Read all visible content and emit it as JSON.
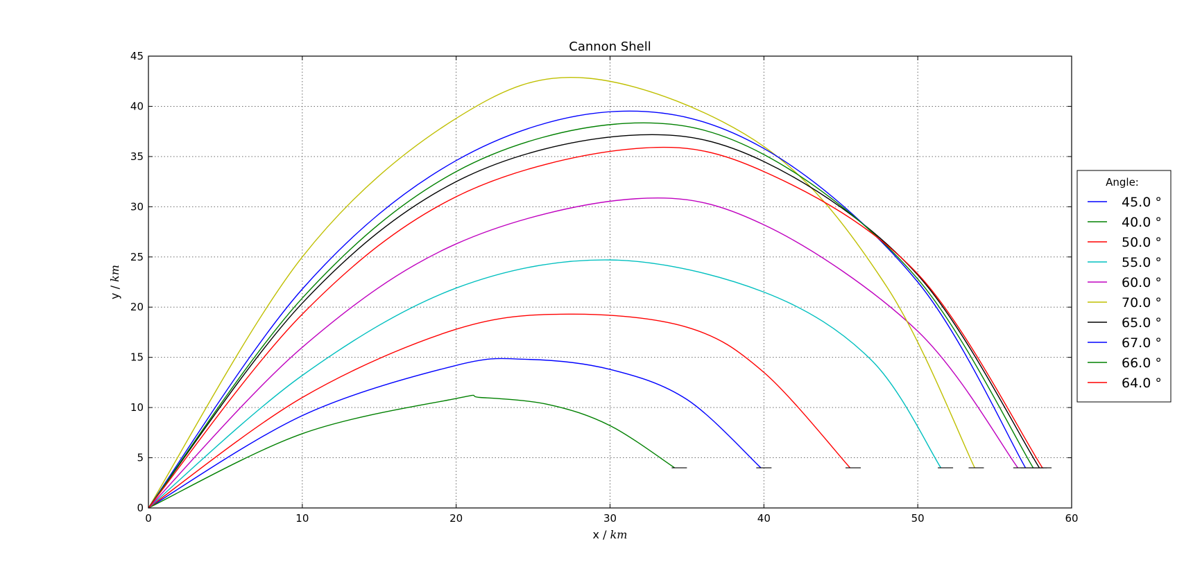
{
  "chart_data": {
    "type": "line",
    "title": "Cannon Shell",
    "xlabel": "x / ",
    "xlabel_unit": "km",
    "ylabel": "y / ",
    "ylabel_unit": "km",
    "xlim": [
      0,
      60
    ],
    "ylim": [
      0,
      45
    ],
    "xticks": [
      0,
      10,
      20,
      30,
      40,
      50,
      60
    ],
    "yticks": [
      0,
      5,
      10,
      15,
      20,
      25,
      30,
      35,
      40,
      45
    ],
    "grid": true,
    "legend": {
      "title": "Angle:",
      "placement": "outside-right"
    },
    "series": [
      {
        "name": "45.0 °",
        "color": "#0000ff",
        "x": [
          0,
          10,
          20,
          24.6,
          30,
          35,
          39.8
        ],
        "y": [
          0,
          9.2,
          14.2,
          14.8,
          13.8,
          10.8,
          4
        ]
      },
      {
        "name": "40.0 °",
        "color": "#008000",
        "x": [
          0,
          10,
          20,
          21.6,
          26,
          30,
          34.2
        ],
        "y": [
          0,
          7.4,
          10.9,
          11.0,
          10.3,
          8.2,
          4
        ]
      },
      {
        "name": "50.0 °",
        "color": "#ff0000",
        "x": [
          0,
          10,
          20,
          27.3,
          35,
          40,
          45.6
        ],
        "y": [
          0,
          11.0,
          17.8,
          19.3,
          18.0,
          13.5,
          4
        ]
      },
      {
        "name": "55.0 °",
        "color": "#00bfbf",
        "x": [
          0,
          10,
          20,
          30,
          40,
          47,
          51.5
        ],
        "y": [
          0,
          13.2,
          21.9,
          24.7,
          21.5,
          14.7,
          4
        ]
      },
      {
        "name": "60.0 °",
        "color": "#bf00bf",
        "x": [
          0,
          10,
          20,
          31.7,
          40,
          50,
          56.5
        ],
        "y": [
          0,
          16.0,
          26.3,
          30.8,
          28.2,
          17.6,
          4
        ]
      },
      {
        "name": "70.0 °",
        "color": "#bfbf00",
        "x": [
          0,
          10,
          20,
          28.6,
          40,
          48,
          53.7
        ],
        "y": [
          0,
          25.0,
          38.8,
          42.8,
          36.0,
          22.0,
          4
        ]
      },
      {
        "name": "65.0 °",
        "color": "#000000",
        "x": [
          0,
          10,
          20,
          31.2,
          40,
          50,
          57.9
        ],
        "y": [
          0,
          20.4,
          32.5,
          37.1,
          34.5,
          23.2,
          4
        ]
      },
      {
        "name": "67.0 °",
        "color": "#0000ff",
        "x": [
          0,
          10,
          20,
          30.5,
          40,
          50,
          57.0
        ],
        "y": [
          0,
          21.8,
          34.6,
          39.5,
          35.8,
          22.5,
          4
        ]
      },
      {
        "name": "66.0 °",
        "color": "#008000",
        "x": [
          0,
          10,
          20,
          31.0,
          40,
          50,
          57.5
        ],
        "y": [
          0,
          20.9,
          33.5,
          38.3,
          35.2,
          22.8,
          4
        ]
      },
      {
        "name": "64.0 °",
        "color": "#ff0000",
        "x": [
          0,
          10,
          20,
          31.7,
          40,
          50,
          58.1
        ],
        "y": [
          0,
          19.3,
          31.0,
          35.8,
          33.5,
          23.3,
          4
        ]
      }
    ],
    "annotations": [
      {
        "type": "landing-marker",
        "y": 4,
        "x": [
          34.5,
          40.0,
          45.8,
          51.8,
          53.8,
          56.7,
          57.2,
          57.7,
          57.9,
          58.2
        ]
      }
    ]
  }
}
